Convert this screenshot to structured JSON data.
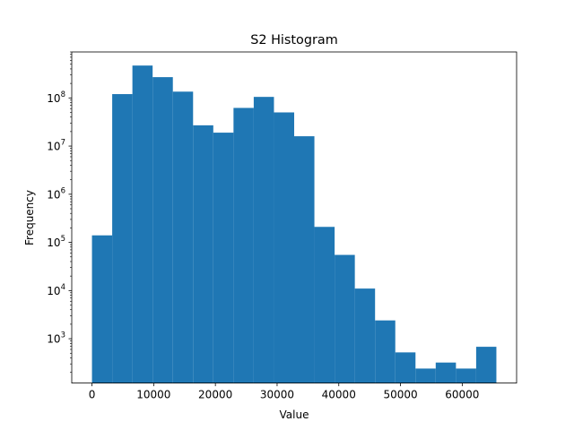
{
  "chart_data": {
    "type": "bar",
    "title": "S2 Histogram",
    "xlabel": "Value",
    "ylabel": "Frequency",
    "yscale": "log",
    "xlim": [
      -3277,
      68812
    ],
    "ylim": [
      120,
      900000000
    ],
    "grid": false,
    "bar_color": "#1f77b4",
    "bins": {
      "edges": [
        0,
        3277,
        6553,
        9830,
        13107,
        16384,
        19660,
        22937,
        26214,
        29491,
        32768,
        36044,
        39321,
        42598,
        45875,
        49151,
        52428,
        55705,
        58982,
        62258,
        65535
      ],
      "counts": [
        140000,
        120000000,
        470000000,
        270000000,
        135000000,
        27000000,
        19000000,
        62000000,
        105000000,
        50000000,
        16000000,
        210000,
        55000,
        11000,
        2400,
        520,
        240,
        320,
        240,
        680
      ]
    },
    "x_ticks": [
      {
        "value": 0,
        "label": "0"
      },
      {
        "value": 10000,
        "label": "10000"
      },
      {
        "value": 20000,
        "label": "20000"
      },
      {
        "value": 30000,
        "label": "30000"
      },
      {
        "value": 40000,
        "label": "40000"
      },
      {
        "value": 50000,
        "label": "50000"
      },
      {
        "value": 60000,
        "label": "60000"
      }
    ],
    "y_ticks": [
      {
        "value": 1000,
        "base": "10",
        "exp": "3"
      },
      {
        "value": 10000,
        "base": "10",
        "exp": "4"
      },
      {
        "value": 100000,
        "base": "10",
        "exp": "5"
      },
      {
        "value": 1000000,
        "base": "10",
        "exp": "6"
      },
      {
        "value": 10000000,
        "base": "10",
        "exp": "7"
      },
      {
        "value": 100000000,
        "base": "10",
        "exp": "8"
      }
    ]
  }
}
